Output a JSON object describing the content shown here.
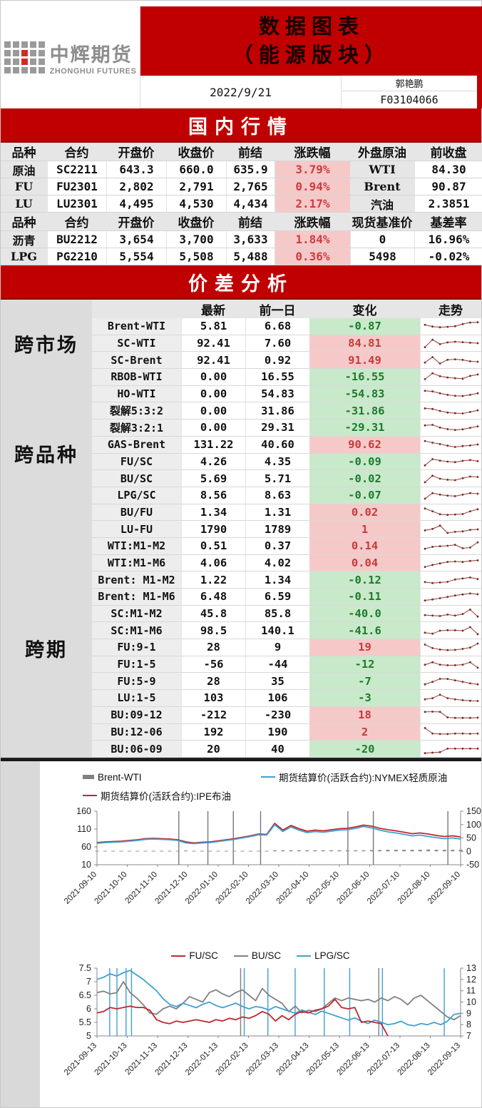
{
  "header": {
    "logo_cn": "中辉期货",
    "logo_en": "ZHONGHUI FUTURES",
    "title_line1": "数据图表",
    "title_line2": "（能源版块）",
    "date": "2022/9/21",
    "analyst": "郭艳鹏",
    "analyst_id": "F03104066"
  },
  "colors": {
    "banner_red": "#C00000",
    "pink_cell": "#F6C9C9",
    "green_cell": "#C9E9CB",
    "red_text": "#CF3A3F",
    "green_text": "#1F7A2E",
    "spark_line": "#A04A45",
    "spark_marker": "#6E2C26",
    "bar_gray": "#808080",
    "line_blue": "#3FA0D0",
    "line_red": "#C0272D"
  },
  "domestic": {
    "banner": "国内行情",
    "headers1": [
      "品种",
      "合约",
      "开盘价",
      "收盘价",
      "前结",
      "涨跌幅",
      "外盘原油",
      "前收盘"
    ],
    "rows1": [
      {
        "name": "原油",
        "contract": "SC2211",
        "open": "643.3",
        "close": "660.0",
        "prev": "635.9",
        "chg": "3.79%",
        "ext": "WTI",
        "ext_val": "84.30"
      },
      {
        "name": "FU",
        "contract": "FU2301",
        "open": "2,802",
        "close": "2,791",
        "prev": "2,765",
        "chg": "0.94%",
        "ext": "Brent",
        "ext_val": "90.87"
      },
      {
        "name": "LU",
        "contract": "LU2301",
        "open": "4,495",
        "close": "4,530",
        "prev": "4,434",
        "chg": "2.17%",
        "ext": "汽油",
        "ext_val": "2.3851"
      }
    ],
    "headers2": [
      "品种",
      "合约",
      "开盘价",
      "收盘价",
      "前结",
      "涨跌幅",
      "现货基准价",
      "基差率"
    ],
    "rows2": [
      {
        "name": "沥青",
        "contract": "BU2212",
        "open": "3,654",
        "close": "3,700",
        "prev": "3,633",
        "chg": "1.84%",
        "ext": "0",
        "ext_val": "16.96%"
      },
      {
        "name": "LPG",
        "contract": "PG2210",
        "open": "5,554",
        "close": "5,508",
        "prev": "5,488",
        "chg": "0.36%",
        "ext": "5498",
        "ext_val": "-0.02%"
      }
    ]
  },
  "spread": {
    "banner": "价差分析",
    "headers": [
      "最新",
      "前一日",
      "变化",
      "走势"
    ],
    "groups": [
      {
        "label": "跨市场",
        "span": 3
      },
      {
        "label": "跨品种",
        "span": 10
      },
      {
        "label": "跨期",
        "span": 13
      }
    ],
    "rows": [
      {
        "name": "Brent-WTI",
        "latest": "5.81",
        "prev": "6.68",
        "chg": "-0.87",
        "dir": "down",
        "spark": [
          62,
          45,
          38,
          42,
          48,
          70,
          85,
          88
        ]
      },
      {
        "name": "SC-WTI",
        "latest": "92.41",
        "prev": "7.60",
        "chg": "84.81",
        "dir": "up",
        "spark": [
          10,
          85,
          40,
          58,
          64,
          60,
          54,
          50
        ]
      },
      {
        "name": "SC-Brent",
        "latest": "92.41",
        "prev": "0.92",
        "chg": "91.49",
        "dir": "up",
        "spark": [
          28,
          82,
          18,
          55,
          60,
          54,
          40,
          36
        ]
      },
      {
        "name": "RBOB-WTI",
        "latest": "0.00",
        "prev": "16.55",
        "chg": "-16.55",
        "dir": "down",
        "spark": [
          25,
          85,
          55,
          42,
          35,
          30,
          58,
          72
        ]
      },
      {
        "name": "HO-WTI",
        "latest": "0.00",
        "prev": "54.83",
        "chg": "-54.83",
        "dir": "down",
        "spark": [
          80,
          74,
          55,
          40,
          30,
          28,
          40,
          56
        ]
      },
      {
        "name": "裂解5:3:2",
        "latest": "0.00",
        "prev": "31.86",
        "chg": "-31.86",
        "dir": "down",
        "spark": [
          76,
          70,
          50,
          34,
          28,
          25,
          40,
          56
        ]
      },
      {
        "name": "裂解3:2:1",
        "latest": "0.00",
        "prev": "29.31",
        "chg": "-29.31",
        "dir": "down",
        "spark": [
          70,
          75,
          48,
          32,
          24,
          30,
          46,
          60
        ]
      },
      {
        "name": "GAS-Brent",
        "latest": "131.22",
        "prev": "40.60",
        "chg": "90.62",
        "dir": "up",
        "spark": [
          85,
          68,
          54,
          38,
          25,
          34,
          40,
          50
        ]
      },
      {
        "name": "FU/SC",
        "latest": "4.26",
        "prev": "4.35",
        "chg": "-0.09",
        "dir": "down",
        "spark": [
          12,
          75,
          60,
          50,
          45,
          58,
          66,
          54
        ]
      },
      {
        "name": "BU/SC",
        "latest": "5.69",
        "prev": "5.71",
        "chg": "-0.02",
        "dir": "down",
        "spark": [
          15,
          80,
          50,
          40,
          36,
          55,
          72,
          68
        ]
      },
      {
        "name": "LPG/SC",
        "latest": "8.56",
        "prev": "8.63",
        "chg": "-0.07",
        "dir": "down",
        "spark": [
          15,
          70,
          55,
          45,
          40,
          55,
          70,
          64
        ]
      },
      {
        "name": "BU/FU",
        "latest": "1.34",
        "prev": "1.31",
        "chg": "0.02",
        "dir": "up",
        "spark": [
          88,
          60,
          30,
          24,
          28,
          32,
          60,
          80
        ]
      },
      {
        "name": "LU-FU",
        "latest": "1790",
        "prev": "1789",
        "chg": "1",
        "dir": "up",
        "spark": [
          40,
          55,
          88,
          14,
          26,
          30,
          46,
          50
        ]
      },
      {
        "name": "WTI:M1-M2",
        "latest": "0.51",
        "prev": "0.37",
        "chg": "0.14",
        "dir": "up",
        "spark": [
          20,
          40,
          46,
          50,
          60,
          26,
          32,
          85
        ]
      },
      {
        "name": "WTI:M1-M6",
        "latest": "4.06",
        "prev": "4.02",
        "chg": "0.04",
        "dir": "up",
        "spark": [
          10,
          30,
          45,
          60,
          64,
          60,
          70,
          76
        ]
      },
      {
        "name": "Brent: M1-M2",
        "latest": "1.22",
        "prev": "1.34",
        "chg": "-0.12",
        "dir": "down",
        "spark": [
          30,
          20,
          26,
          32,
          56,
          66,
          76,
          60
        ]
      },
      {
        "name": "Brent: M1-M6",
        "latest": "6.48",
        "prev": "6.59",
        "chg": "-0.11",
        "dir": "down",
        "spark": [
          10,
          20,
          32,
          46,
          60,
          70,
          80,
          72
        ]
      },
      {
        "name": "SC:M1-M2",
        "latest": "45.8",
        "prev": "85.8",
        "chg": "-40.0",
        "dir": "down",
        "spark": [
          35,
          30,
          26,
          40,
          30,
          46,
          90,
          20
        ]
      },
      {
        "name": "SC:M1-M6",
        "latest": "98.5",
        "prev": "140.1",
        "chg": "-41.6",
        "dir": "down",
        "spark": [
          30,
          20,
          50,
          55,
          54,
          50,
          86,
          15
        ]
      },
      {
        "name": "FU:9-1",
        "latest": "28",
        "prev": "9",
        "chg": "19",
        "dir": "up",
        "spark": [
          75,
          40,
          26,
          20,
          22,
          32,
          46,
          86
        ]
      },
      {
        "name": "FU:1-5",
        "latest": "-56",
        "prev": "-44",
        "chg": "-12",
        "dir": "down",
        "spark": [
          45,
          70,
          46,
          40,
          40,
          46,
          70,
          15
        ]
      },
      {
        "name": "FU:5-9",
        "latest": "28",
        "prev": "35",
        "chg": "-7",
        "dir": "down",
        "spark": [
          20,
          45,
          75,
          74,
          60,
          46,
          30,
          20
        ]
      },
      {
        "name": "LU:1-5",
        "latest": "103",
        "prev": "106",
        "chg": "-3",
        "dir": "down",
        "spark": [
          35,
          46,
          80,
          46,
          35,
          26,
          20,
          18
        ]
      },
      {
        "name": "BU:09-12",
        "latest": "-212",
        "prev": "-230",
        "chg": "18",
        "dir": "up",
        "spark": [
          80,
          82,
          80,
          25,
          20,
          20,
          20,
          22
        ]
      },
      {
        "name": "BU:12-06",
        "latest": "192",
        "prev": "190",
        "chg": "2",
        "dir": "up",
        "spark": [
          90,
          35,
          30,
          30,
          35,
          35,
          32,
          35
        ]
      },
      {
        "name": "BU:06-09",
        "latest": "20",
        "prev": "40",
        "chg": "-20",
        "dir": "down",
        "spark": [
          10,
          15,
          20,
          55,
          55,
          55,
          55,
          55
        ]
      }
    ]
  },
  "chart_data": [
    {
      "type": "line",
      "title": "",
      "legend": [
        {
          "name": "Brent-WTI",
          "swatch": "bar",
          "color": "#808080"
        },
        {
          "name": "期货结算价(活跃合约):NYMEX轻质原油",
          "swatch": "line",
          "color": "#3FA0D0"
        },
        {
          "name": "期货结算价(活跃合约):IPE布油",
          "swatch": "line",
          "color": "#C0272D"
        }
      ],
      "x_ticks": [
        "2021-09-10",
        "2021-10-10",
        "2021-11-10",
        "2021-12-10",
        "2022-01-10",
        "2022-02-10",
        "2022-03-10",
        "2022-04-10",
        "2022-05-10",
        "2022-06-10",
        "2022-07-10",
        "2022-08-10",
        "2022-09-10"
      ],
      "left_axis": {
        "ticks": [
          160,
          110,
          60,
          10
        ],
        "min": 10,
        "max": 160
      },
      "right_axis": {
        "ticks": [
          150,
          100,
          50,
          0,
          -50
        ],
        "min": -50,
        "max": 150
      },
      "grid": false,
      "legend_position": "top",
      "series": [
        {
          "name": "Brent-WTI",
          "axis": "right",
          "type": "bar",
          "color": "#909090",
          "values": [
            2,
            2,
            2,
            2,
            2,
            2,
            2,
            2,
            2,
            2,
            2,
            3,
            2,
            2,
            2,
            2,
            2,
            2,
            2,
            2,
            2,
            2,
            4,
            4,
            4,
            4,
            4,
            4,
            4,
            4,
            4,
            4,
            4,
            4,
            5,
            5,
            6,
            6,
            6,
            6,
            6,
            7,
            6,
            6,
            6,
            6
          ]
        },
        {
          "name": "期货结算价(活跃合约):IPE布油",
          "axis": "left",
          "type": "line",
          "color": "#C0272D",
          "values": [
            72,
            74,
            75,
            76,
            78,
            80,
            83,
            84,
            83,
            82,
            80,
            74,
            71,
            73,
            74,
            77,
            80,
            83,
            87,
            91,
            96,
            95,
            126,
            107,
            120,
            111,
            104,
            107,
            105,
            108,
            111,
            112,
            116,
            121,
            118,
            112,
            108,
            105,
            101,
            97,
            99,
            96,
            92,
            89,
            91,
            88
          ]
        },
        {
          "name": "期货结算价(活跃合约):NYMEX轻质原油",
          "axis": "left",
          "type": "line",
          "color": "#3FA0D0",
          "values": [
            70,
            72,
            73,
            74,
            76,
            78,
            81,
            82,
            81,
            80,
            78,
            71,
            69,
            71,
            72,
            75,
            78,
            81,
            85,
            89,
            94,
            93,
            122,
            103,
            116,
            107,
            100,
            103,
            101,
            104,
            107,
            108,
            112,
            117,
            113,
            107,
            102,
            99,
            95,
            91,
            93,
            89,
            86,
            83,
            85,
            82
          ]
        }
      ],
      "gap_lines": [
        {
          "x": 0.225,
          "color": "#777777"
        },
        {
          "x": 0.305,
          "color": "#777777"
        },
        {
          "x": 0.375,
          "color": "#777777"
        },
        {
          "x": 0.45,
          "color": "#777777"
        },
        {
          "x": 0.69,
          "color": "#777777"
        },
        {
          "x": 0.76,
          "color": "#777777"
        },
        {
          "x": 0.965,
          "color": "#777777"
        }
      ]
    },
    {
      "type": "line",
      "title": "",
      "legend": [
        {
          "name": "FU/SC",
          "swatch": "line",
          "color": "#C0272D"
        },
        {
          "name": "BU/SC",
          "swatch": "line",
          "color": "#808080"
        },
        {
          "name": "LPG/SC",
          "swatch": "line",
          "color": "#3FA0D0"
        }
      ],
      "x_ticks": [
        "2021-09-13",
        "2021-10-13",
        "2021-11-13",
        "2021-12-13",
        "2022-01-13",
        "2022-02-13",
        "2022-03-13",
        "2022-04-13",
        "2022-05-13",
        "2022-06-13",
        "2022-07-13",
        "2022-08-13",
        "2022-09-13"
      ],
      "left_axis": {
        "ticks": [
          7.5,
          7,
          6.5,
          6,
          5.5,
          5
        ],
        "min": 5,
        "max": 7.5
      },
      "right_axis": {
        "ticks": [
          13,
          12,
          11,
          10,
          9,
          8,
          7
        ],
        "min": 7,
        "max": 13
      },
      "grid": false,
      "legend_position": "top",
      "series": [
        {
          "name": "BU/SC",
          "axis": "left",
          "type": "line",
          "color": "#808080",
          "values": [
            6.6,
            6.65,
            6.55,
            6.6,
            7.0,
            6.6,
            6.4,
            6.15,
            5.85,
            5.8,
            6.0,
            6.1,
            6.0,
            6.2,
            6.45,
            6.35,
            6.25,
            6.6,
            6.7,
            6.55,
            6.45,
            6.6,
            6.7,
            6.5,
            6.3,
            6.75,
            6.5,
            6.35,
            6.2,
            5.9,
            6.1,
            5.85,
            5.95,
            5.9,
            6.0,
            6.2,
            6.4,
            6.3,
            6.4,
            6.35,
            6.3,
            6.35,
            6.25,
            6.4,
            6.3,
            6.45,
            6.35,
            6.15,
            6.4,
            6.5,
            6.3,
            6.1,
            5.9,
            5.7,
            5.6,
            5.75
          ]
        },
        {
          "name": "LPG/SC",
          "axis": "right",
          "type": "line",
          "color": "#3FA0D0",
          "values": [
            12.0,
            12.2,
            12.5,
            12.3,
            12.6,
            12.8,
            12.4,
            12.0,
            11.5,
            11.0,
            10.3,
            9.8,
            9.6,
            9.9,
            9.7,
            9.5,
            9.8,
            10.0,
            9.7,
            9.5,
            9.7,
            9.9,
            9.6,
            9.4,
            9.6,
            9.5,
            9.3,
            9.6,
            9.4,
            9.2,
            9.0,
            9.3,
            9.1,
            8.9,
            9.2,
            9.0,
            8.8,
            8.6,
            8.4,
            8.6,
            8.3,
            8.1,
            8.4,
            8.2,
            8.0,
            8.1,
            8.3,
            8.0,
            7.9,
            8.1,
            8.0,
            8.2,
            8.0,
            8.3,
            8.9,
            9.0
          ]
        },
        {
          "name": "FU/SC",
          "axis": "left",
          "type": "line",
          "color": "#C0272D",
          "values": [
            5.85,
            5.9,
            6.05,
            6.0,
            6.05,
            6.1,
            6.05,
            6.05,
            5.95,
            5.6,
            5.5,
            5.45,
            5.55,
            5.5,
            5.55,
            5.6,
            5.55,
            5.5,
            5.6,
            5.55,
            5.65,
            5.6,
            5.7,
            5.65,
            5.75,
            5.9,
            5.8,
            5.55,
            5.75,
            5.6,
            5.8,
            5.9,
            5.85,
            5.95,
            6.0,
            6.1,
            6.35,
            6.05,
            6.0,
            6.05,
            5.5,
            5.55,
            5.5,
            5.45,
            5.0,
            null,
            null,
            null,
            null,
            null,
            null,
            null,
            null,
            null,
            null,
            null
          ]
        }
      ],
      "gap_lines": [
        {
          "x": 0.035,
          "color": "#3FA0D0"
        },
        {
          "x": 0.055,
          "color": "#3FA0D0"
        },
        {
          "x": 0.08,
          "color": "#3FA0D0"
        },
        {
          "x": 0.095,
          "color": "#3FA0D0"
        },
        {
          "x": 0.395,
          "color": "#808080"
        },
        {
          "x": 0.405,
          "color": "#3FA0D0"
        },
        {
          "x": 0.47,
          "color": "#3FA0D0"
        },
        {
          "x": 0.545,
          "color": "#3FA0D0"
        },
        {
          "x": 0.625,
          "color": "#3FA0D0"
        },
        {
          "x": 0.695,
          "color": "#3FA0D0"
        },
        {
          "x": 0.775,
          "color": "#808080"
        },
        {
          "x": 0.785,
          "color": "#3FA0D0"
        },
        {
          "x": 0.955,
          "color": "#3FA0D0"
        }
      ]
    }
  ]
}
